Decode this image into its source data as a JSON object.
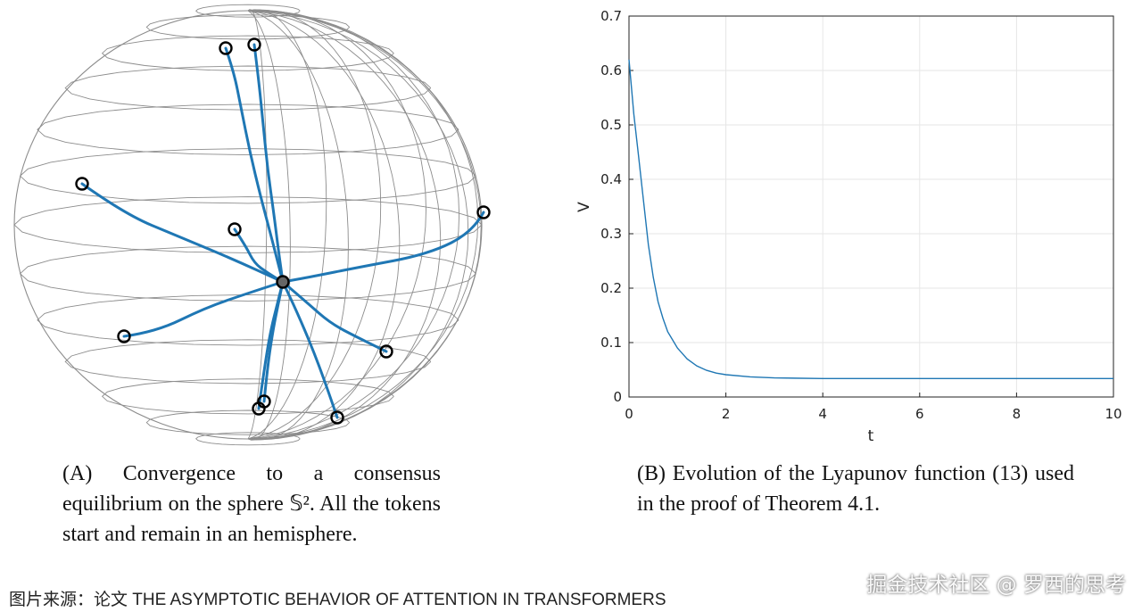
{
  "panel_a": {
    "caption_tag": "(A)",
    "caption_text": "Convergence to a consensus equilibrium on the sphere 𝕊². All the tokens start and remain in an hemisphere.",
    "colors": {
      "wire": "#8c8c8c",
      "trajectory": "#1f77b4",
      "marker": "#000000"
    },
    "consensus_point": [
      317,
      316
    ],
    "trajectories": [
      [
        [
          253,
          54
        ],
        [
          262,
          80
        ],
        [
          270,
          120
        ],
        [
          280,
          170
        ],
        [
          292,
          220
        ],
        [
          304,
          265
        ],
        [
          317,
          316
        ]
      ],
      [
        [
          285,
          50
        ],
        [
          290,
          90
        ],
        [
          295,
          140
        ],
        [
          300,
          190
        ],
        [
          307,
          240
        ],
        [
          312,
          280
        ],
        [
          317,
          316
        ]
      ],
      [
        [
          92,
          206
        ],
        [
          140,
          240
        ],
        [
          200,
          265
        ],
        [
          260,
          290
        ],
        [
          317,
          316
        ]
      ],
      [
        [
          263,
          257
        ],
        [
          275,
          275
        ],
        [
          285,
          295
        ],
        [
          300,
          306
        ],
        [
          317,
          316
        ]
      ],
      [
        [
          542,
          238
        ],
        [
          530,
          260
        ],
        [
          480,
          285
        ],
        [
          400,
          300
        ],
        [
          350,
          310
        ],
        [
          317,
          316
        ]
      ],
      [
        [
          139,
          377
        ],
        [
          175,
          372
        ],
        [
          230,
          345
        ],
        [
          280,
          328
        ],
        [
          317,
          316
        ]
      ],
      [
        [
          433,
          394
        ],
        [
          400,
          378
        ],
        [
          370,
          362
        ],
        [
          345,
          340
        ],
        [
          317,
          316
        ]
      ],
      [
        [
          296,
          450
        ],
        [
          300,
          410
        ],
        [
          306,
          370
        ],
        [
          312,
          340
        ],
        [
          317,
          316
        ]
      ],
      [
        [
          290,
          458
        ],
        [
          296,
          415
        ],
        [
          303,
          372
        ],
        [
          311,
          340
        ],
        [
          317,
          316
        ]
      ],
      [
        [
          378,
          468
        ],
        [
          365,
          430
        ],
        [
          350,
          390
        ],
        [
          333,
          350
        ],
        [
          317,
          316
        ]
      ]
    ]
  },
  "panel_b": {
    "caption_tag": "(B)",
    "caption_text": "Evolution of the Lyapunov function (13) used in the proof of Theorem 4.1."
  },
  "chart_data": {
    "type": "line",
    "xlabel": "t",
    "ylabel": "V",
    "xlim": [
      0,
      10
    ],
    "ylim": [
      0,
      0.7
    ],
    "xticks": [
      0,
      2,
      4,
      6,
      8,
      10
    ],
    "yticks": [
      0,
      0.1,
      0.2,
      0.3,
      0.4,
      0.5,
      0.6,
      0.7
    ],
    "grid": true,
    "series": [
      {
        "color": "#1f77b4",
        "x": [
          0,
          0.1,
          0.2,
          0.3,
          0.4,
          0.5,
          0.6,
          0.7,
          0.8,
          1.0,
          1.2,
          1.4,
          1.6,
          1.8,
          2.0,
          2.5,
          3.0,
          4.0,
          5.0,
          6.0,
          7.0,
          8.0,
          9.0,
          10.0
        ],
        "y": [
          0.62,
          0.52,
          0.44,
          0.36,
          0.28,
          0.22,
          0.175,
          0.145,
          0.12,
          0.09,
          0.07,
          0.057,
          0.049,
          0.044,
          0.041,
          0.037,
          0.035,
          0.034,
          0.034,
          0.034,
          0.034,
          0.034,
          0.034,
          0.034
        ]
      }
    ]
  },
  "source_line": "图片来源：论文 THE ASYMPTOTIC BEHAVIOR OF ATTENTION IN TRANSFORMERS",
  "watermark": "掘金技术社区 @ 罗西的思考"
}
